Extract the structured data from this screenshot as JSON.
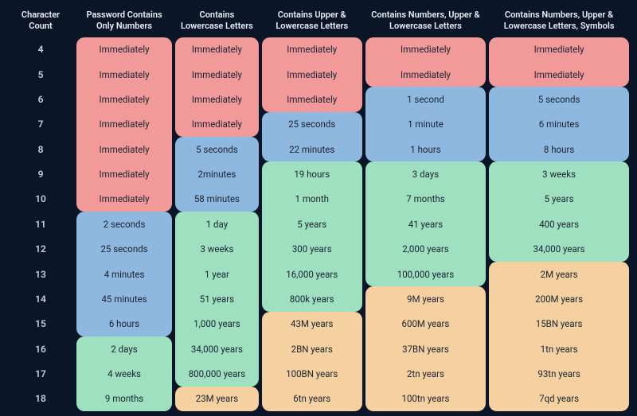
{
  "type": "table",
  "background_color": "#0a1628",
  "header_text_color": "#e8eef5",
  "rowlabel_text_color": "#c5d1e0",
  "cell_text_color": "#1a2332",
  "font_family": "system-ui",
  "header_fontsize": 11,
  "cell_fontsize": 11.5,
  "border_radius": 10,
  "tiers": {
    "red": "#f29a9a",
    "blue": "#8fb8e0",
    "green": "#9fe0c0",
    "orange": "#f5d0a0"
  },
  "columns": [
    {
      "key": "count",
      "label": "Character Count"
    },
    {
      "key": "c1",
      "label": "Password Contains Only Numbers"
    },
    {
      "key": "c2",
      "label": "Contains Lowercase Letters"
    },
    {
      "key": "c3",
      "label": "Contains Upper & Lowercase Letters"
    },
    {
      "key": "c4",
      "label": "Contains Numbers, Upper & Lowercase Letters"
    },
    {
      "key": "c5",
      "label": "Contains Numbers, Upper & Lowercase Letters, Symbols"
    }
  ],
  "rows": [
    {
      "count": "4",
      "c1": {
        "v": "Immediately",
        "t": "red"
      },
      "c2": {
        "v": "Immediately",
        "t": "red"
      },
      "c3": {
        "v": "Immediately",
        "t": "red"
      },
      "c4": {
        "v": "Immediately",
        "t": "red"
      },
      "c5": {
        "v": "Immediately",
        "t": "red"
      }
    },
    {
      "count": "5",
      "c1": {
        "v": "Immediately",
        "t": "red"
      },
      "c2": {
        "v": "Immediately",
        "t": "red"
      },
      "c3": {
        "v": "Immediately",
        "t": "red"
      },
      "c4": {
        "v": "Immediately",
        "t": "red"
      },
      "c5": {
        "v": "Immediately",
        "t": "red"
      }
    },
    {
      "count": "6",
      "c1": {
        "v": "Immediately",
        "t": "red"
      },
      "c2": {
        "v": "Immediately",
        "t": "red"
      },
      "c3": {
        "v": "Immediately",
        "t": "red"
      },
      "c4": {
        "v": "1 second",
        "t": "blue"
      },
      "c5": {
        "v": "5 seconds",
        "t": "blue"
      }
    },
    {
      "count": "7",
      "c1": {
        "v": "Immediately",
        "t": "red"
      },
      "c2": {
        "v": "Immediately",
        "t": "red"
      },
      "c3": {
        "v": "25 seconds",
        "t": "blue"
      },
      "c4": {
        "v": "1 minute",
        "t": "blue"
      },
      "c5": {
        "v": "6 minutes",
        "t": "blue"
      }
    },
    {
      "count": "8",
      "c1": {
        "v": "Immediately",
        "t": "red"
      },
      "c2": {
        "v": "5 seconds",
        "t": "blue"
      },
      "c3": {
        "v": "22 minutes",
        "t": "blue"
      },
      "c4": {
        "v": "1 hours",
        "t": "blue"
      },
      "c5": {
        "v": "8 hours",
        "t": "blue"
      }
    },
    {
      "count": "9",
      "c1": {
        "v": "Immediately",
        "t": "red"
      },
      "c2": {
        "v": "2minutes",
        "t": "blue"
      },
      "c3": {
        "v": "19 hours",
        "t": "green"
      },
      "c4": {
        "v": "3 days",
        "t": "green"
      },
      "c5": {
        "v": "3 weeks",
        "t": "green"
      }
    },
    {
      "count": "10",
      "c1": {
        "v": "Immediately",
        "t": "red"
      },
      "c2": {
        "v": "58 minutes",
        "t": "blue"
      },
      "c3": {
        "v": "1 month",
        "t": "green"
      },
      "c4": {
        "v": "7 months",
        "t": "green"
      },
      "c5": {
        "v": "5 years",
        "t": "green"
      }
    },
    {
      "count": "11",
      "c1": {
        "v": "2 seconds",
        "t": "blue"
      },
      "c2": {
        "v": "1 day",
        "t": "green"
      },
      "c3": {
        "v": "5 years",
        "t": "green"
      },
      "c4": {
        "v": "41 years",
        "t": "green"
      },
      "c5": {
        "v": "400 years",
        "t": "green"
      }
    },
    {
      "count": "12",
      "c1": {
        "v": "25 seconds",
        "t": "blue"
      },
      "c2": {
        "v": "3 weeks",
        "t": "green"
      },
      "c3": {
        "v": "300 years",
        "t": "green"
      },
      "c4": {
        "v": "2,000 years",
        "t": "green"
      },
      "c5": {
        "v": "34,000 years",
        "t": "green"
      }
    },
    {
      "count": "13",
      "c1": {
        "v": "4 minutes",
        "t": "blue"
      },
      "c2": {
        "v": "1 year",
        "t": "green"
      },
      "c3": {
        "v": "16,000 years",
        "t": "green"
      },
      "c4": {
        "v": "100,000 years",
        "t": "green"
      },
      "c5": {
        "v": "2M years",
        "t": "orange"
      }
    },
    {
      "count": "14",
      "c1": {
        "v": "45 minutes",
        "t": "blue"
      },
      "c2": {
        "v": "51 years",
        "t": "green"
      },
      "c3": {
        "v": "800k years",
        "t": "green"
      },
      "c4": {
        "v": "9M years",
        "t": "orange"
      },
      "c5": {
        "v": "200M years",
        "t": "orange"
      }
    },
    {
      "count": "15",
      "c1": {
        "v": "6 hours",
        "t": "blue"
      },
      "c2": {
        "v": "1,000 years",
        "t": "green"
      },
      "c3": {
        "v": "43M years",
        "t": "orange"
      },
      "c4": {
        "v": "600M years",
        "t": "orange"
      },
      "c5": {
        "v": "15BN years",
        "t": "orange"
      }
    },
    {
      "count": "16",
      "c1": {
        "v": "2 days",
        "t": "green"
      },
      "c2": {
        "v": "34,000 years",
        "t": "green"
      },
      "c3": {
        "v": "2BN years",
        "t": "orange"
      },
      "c4": {
        "v": "37BN years",
        "t": "orange"
      },
      "c5": {
        "v": "1tn years",
        "t": "orange"
      }
    },
    {
      "count": "17",
      "c1": {
        "v": "4 weeks",
        "t": "green"
      },
      "c2": {
        "v": "800,000 years",
        "t": "green"
      },
      "c3": {
        "v": "100BN years",
        "t": "orange"
      },
      "c4": {
        "v": "2tn years",
        "t": "orange"
      },
      "c5": {
        "v": "93tn years",
        "t": "orange"
      }
    },
    {
      "count": "18",
      "c1": {
        "v": "9 months",
        "t": "green"
      },
      "c2": {
        "v": "23M years",
        "t": "orange"
      },
      "c3": {
        "v": "6tn years",
        "t": "orange"
      },
      "c4": {
        "v": "100tn years",
        "t": "orange"
      },
      "c5": {
        "v": "7qd years",
        "t": "orange"
      }
    }
  ]
}
